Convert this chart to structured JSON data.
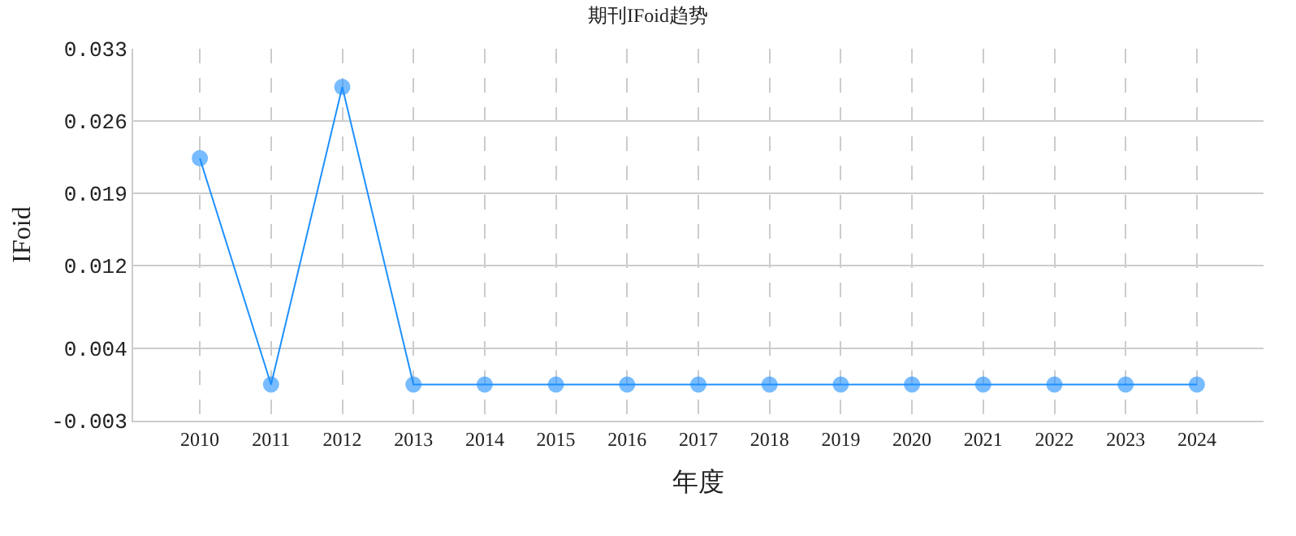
{
  "chart_data": {
    "type": "line",
    "title": "期刊IFoid趋势",
    "xlabel": "年度",
    "ylabel": "IFoid",
    "categories": [
      "2010",
      "2011",
      "2012",
      "2013",
      "2014",
      "2015",
      "2016",
      "2017",
      "2018",
      "2019",
      "2020",
      "2021",
      "2022",
      "2023",
      "2024"
    ],
    "series": [
      {
        "color": "#1e90ff",
        "values": [
          0.0224,
          0.0005,
          0.0293,
          0.0005,
          0.0005,
          0.0005,
          0.0005,
          0.0005,
          0.0005,
          0.0005,
          0.0005,
          0.0005,
          0.0005,
          0.0005,
          0.0005
        ]
      }
    ],
    "ylim": [
      -0.003,
      0.033
    ],
    "yticks": [
      -0.003,
      0.004,
      0.012,
      0.019,
      0.026,
      0.033
    ],
    "grid": true,
    "marker": "circle",
    "line_style": "solid"
  }
}
